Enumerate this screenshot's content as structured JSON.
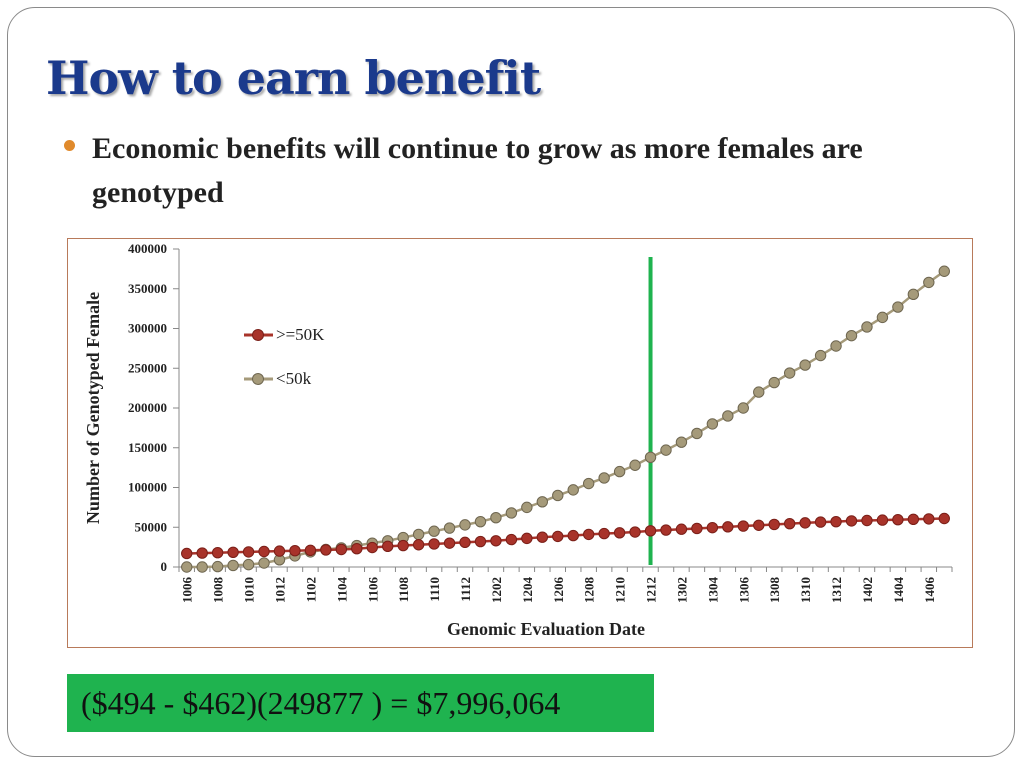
{
  "slide": {
    "title": "How to earn benefit",
    "bullet": "Economic benefits will continue to grow as more females are genotyped",
    "formula": "($494 - $462)(249877 ) = $7,996,064"
  },
  "colors": {
    "title": "#1b3a8c",
    "bullet": "#e08a2c",
    "series_high": "#a8332a",
    "series_low": "#a59a7a",
    "marker_line": "#1fb34f",
    "formula_bg": "#1fb34f"
  },
  "chart_data": {
    "type": "line",
    "title": "",
    "xlabel": "Genomic Evaluation Date",
    "ylabel": "Number of Genotyped Female",
    "ylim": [
      0,
      400000
    ],
    "yticks": [
      "0",
      "50000",
      "100000",
      "150000",
      "200000",
      "250000",
      "300000",
      "350000",
      "400000"
    ],
    "legend_position": "upper-left",
    "grid": false,
    "x": [
      "1006",
      "1007",
      "1008",
      "1009",
      "1010",
      "1011",
      "1012",
      "1101",
      "1102",
      "1103",
      "1104",
      "1105",
      "1106",
      "1107",
      "1108",
      "1109",
      "1110",
      "1111",
      "1112",
      "1201",
      "1202",
      "1203",
      "1204",
      "1205",
      "1206",
      "1207",
      "1208",
      "1209",
      "1210",
      "1211",
      "1212",
      "1301",
      "1302",
      "1303",
      "1304",
      "1305",
      "1306",
      "1307",
      "1308",
      "1309",
      "1310",
      "1311",
      "1312",
      "1401",
      "1402",
      "1403",
      "1404",
      "1405",
      "1406",
      "1407"
    ],
    "x_tick_labels": [
      "1006",
      "1008",
      "1010",
      "1012",
      "1102",
      "1104",
      "1106",
      "1108",
      "1110",
      "1112",
      "1202",
      "1204",
      "1206",
      "1208",
      "1210",
      "1212",
      "1302",
      "1304",
      "1306",
      "1308",
      "1310",
      "1312",
      "1402",
      "1404",
      "1406"
    ],
    "vertical_marker_x": "1212",
    "series": [
      {
        "name": ">=50K",
        "values": [
          17000,
          17500,
          18000,
          18500,
          19000,
          19500,
          20000,
          20500,
          21000,
          21500,
          22000,
          23000,
          24500,
          26000,
          27000,
          28000,
          29000,
          30000,
          31000,
          32000,
          33000,
          34500,
          36000,
          37500,
          38500,
          39500,
          41000,
          42000,
          43000,
          44000,
          45500,
          46500,
          47500,
          48500,
          49500,
          50500,
          51500,
          52500,
          53500,
          54500,
          55500,
          56500,
          57000,
          58000,
          58500,
          59000,
          59500,
          60000,
          60500,
          61000
        ]
      },
      {
        "name": "<50k",
        "values": [
          0,
          0,
          500,
          2000,
          3000,
          5000,
          9000,
          14000,
          19000,
          22000,
          24000,
          27000,
          30000,
          33000,
          37000,
          41000,
          45000,
          49000,
          53000,
          57000,
          62000,
          68000,
          75000,
          82000,
          90000,
          97000,
          105000,
          112000,
          120000,
          128000,
          138000,
          147000,
          157000,
          168000,
          180000,
          190000,
          200000,
          220000,
          232000,
          244000,
          254000,
          266000,
          278000,
          291000,
          302000,
          314000,
          327000,
          343000,
          358000,
          372000
        ]
      }
    ]
  }
}
